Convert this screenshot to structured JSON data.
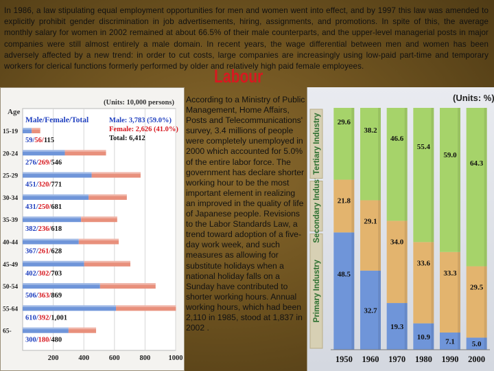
{
  "intro_text": "In 1986, a law stipulating equal employment opportunities for men and women went into effect, and by 1997 this law was amended to explicitly prohibit gender discrimination in job advertisements, hiring, assignments, and promotions. In spite of this, the average monthly salary for women in 2002 remained at about 66.5% of their male counterparts, and the upper-level managerial posts in major companies were still almost entirely a male domain. In recent years, the wage differential between men and women has been adversely affected by a new trend: in order to cut costs, large companies are increasingly using low-paid part-time and temporary workers for clerical functions formerly performed by older and relatively high paid female employees.",
  "heading": "Labour",
  "mid_text": "According to a Ministry of Public Management, Home Affairs, Posts and Telecommunications' survey, 3.4 millions of people were completely unemployed in 2000 which accounted for 5.0% of the entire labor force. The government has declare shorter working hour to be the most important element in realizing an improved in the quality of life of Japanese people. Revisions to the Labor Standards Law, a trend toward adoption of a five-day work week, and such measures as allowing for substitute holidays when a national holiday falls on a Sunday have contributed to shorter working hours. Annual working hours, which had been 2,110 in 1985, stood at 1,837 in 2002 .",
  "colors": {
    "male": "#6f95d9",
    "female": "#e8907c",
    "primary": "#6f95d9",
    "secondary": "#e3b46e",
    "tertiary": "#a6d36a",
    "heading": "#d71920",
    "female_text": "#d71920",
    "male_text": "#1f3fbf"
  },
  "chart_data": [
    {
      "type": "bar",
      "orientation": "horizontal",
      "stacked": true,
      "units_label": "(Units: 10,000 persons)",
      "axis_title": "Age",
      "legend_title": "Male/Female/Total",
      "legend_male": "Male: 3,783 (59.0%)",
      "legend_female": "Female: 2,626 (41.0%)",
      "legend_total": "Total: 6,412",
      "categories": [
        "15-19",
        "20-24",
        "25-29",
        "30-34",
        "35-39",
        "40-44",
        "45-49",
        "50-54",
        "55-64",
        "65-"
      ],
      "value_labels": [
        "59/56/115",
        "276/269/546",
        "451/320/771",
        "431/250/681",
        "382/236/618",
        "367/261/628",
        "402/302/703",
        "506/363/869",
        "610/392/1,001",
        "300/180/480"
      ],
      "series": [
        {
          "name": "Male",
          "values": [
            59,
            276,
            451,
            431,
            382,
            367,
            402,
            506,
            610,
            300
          ]
        },
        {
          "name": "Female",
          "values": [
            56,
            269,
            320,
            250,
            236,
            261,
            302,
            363,
            392,
            180
          ]
        }
      ],
      "x_ticks": [
        "200",
        "400",
        "600",
        "800",
        "1000"
      ],
      "xlim": [
        0,
        1000
      ]
    },
    {
      "type": "bar",
      "stacked": true,
      "percent": true,
      "units_label": "(Units: %)",
      "categories": [
        "1950",
        "1960",
        "1970",
        "1980",
        "1990",
        "2000"
      ],
      "series": [
        {
          "name": "Primary Industry",
          "values": [
            48.5,
            32.7,
            19.3,
            10.9,
            7.1,
            5.0
          ]
        },
        {
          "name": "Secondary Industry",
          "values": [
            21.8,
            29.1,
            34.0,
            33.6,
            33.3,
            29.5
          ]
        },
        {
          "name": "Tertiary Industry",
          "values": [
            29.6,
            38.2,
            46.6,
            55.4,
            59.0,
            64.3
          ]
        }
      ],
      "ylim": [
        0,
        100
      ]
    }
  ]
}
